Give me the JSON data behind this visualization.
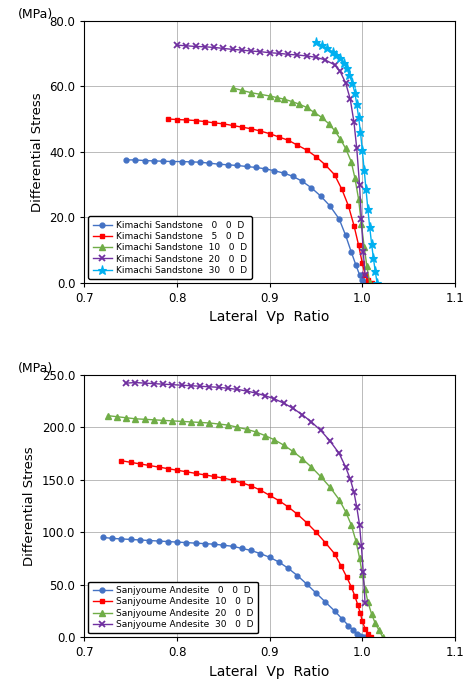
{
  "top_chart": {
    "ylabel": "Differential Stress",
    "ylabel2": "(MPa)",
    "xlabel": "Lateral  Vp  Ratio",
    "xlim": [
      0.7,
      1.1
    ],
    "ylim": [
      0.0,
      80.0
    ],
    "yticks": [
      0.0,
      20.0,
      40.0,
      60.0,
      80.0
    ],
    "xticks": [
      0.7,
      0.8,
      0.9,
      1.0,
      1.1
    ],
    "series": [
      {
        "label": "Kimachi Sandstone   0   0  D",
        "color": "#4472C4",
        "marker": "o",
        "markersize": 3.5,
        "vp_ratio": [
          0.745,
          0.755,
          0.765,
          0.775,
          0.785,
          0.795,
          0.805,
          0.815,
          0.825,
          0.835,
          0.845,
          0.855,
          0.865,
          0.875,
          0.885,
          0.895,
          0.905,
          0.915,
          0.925,
          0.935,
          0.945,
          0.955,
          0.965,
          0.975,
          0.982,
          0.988,
          0.993,
          0.997,
          1.0,
          1.002,
          1.005
        ],
        "stress": [
          37.5,
          37.5,
          37.3,
          37.2,
          37.1,
          37.0,
          37.0,
          36.9,
          36.8,
          36.5,
          36.2,
          36.0,
          35.8,
          35.5,
          35.2,
          34.8,
          34.2,
          33.5,
          32.5,
          31.0,
          29.0,
          26.5,
          23.5,
          19.5,
          14.5,
          9.5,
          5.5,
          2.5,
          0.8,
          0.2,
          0.0
        ]
      },
      {
        "label": "Kimachi Sandstone   5   0  D",
        "color": "#FF0000",
        "marker": "s",
        "markersize": 3.5,
        "vp_ratio": [
          0.79,
          0.8,
          0.81,
          0.82,
          0.83,
          0.84,
          0.85,
          0.86,
          0.87,
          0.88,
          0.89,
          0.9,
          0.91,
          0.92,
          0.93,
          0.94,
          0.95,
          0.96,
          0.97,
          0.978,
          0.985,
          0.991,
          0.996,
          1.0,
          1.003,
          1.006,
          1.01
        ],
        "stress": [
          50.0,
          49.8,
          49.7,
          49.5,
          49.2,
          48.8,
          48.5,
          48.0,
          47.5,
          47.0,
          46.3,
          45.5,
          44.5,
          43.5,
          42.0,
          40.5,
          38.5,
          36.0,
          33.0,
          28.5,
          23.5,
          17.5,
          11.5,
          6.0,
          2.5,
          0.8,
          0.0
        ]
      },
      {
        "label": "Kimachi Sandstone  10   0  D",
        "color": "#70AD47",
        "marker": "^",
        "markersize": 4,
        "vp_ratio": [
          0.86,
          0.87,
          0.88,
          0.89,
          0.9,
          0.908,
          0.916,
          0.924,
          0.932,
          0.94,
          0.948,
          0.956,
          0.964,
          0.97,
          0.976,
          0.982,
          0.988,
          0.992,
          0.996,
          0.999,
          1.002,
          1.005,
          1.008
        ],
        "stress": [
          59.5,
          58.7,
          58.0,
          57.5,
          57.0,
          56.5,
          56.0,
          55.3,
          54.5,
          53.5,
          52.0,
          50.5,
          48.5,
          46.5,
          44.0,
          41.0,
          37.0,
          32.0,
          25.5,
          18.0,
          11.0,
          5.0,
          0.0
        ]
      },
      {
        "label": "Kimachi Sandstone  20   0  D",
        "color": "#7030A0",
        "marker": "x",
        "markersize": 4.5,
        "vp_ratio": [
          0.8,
          0.81,
          0.82,
          0.83,
          0.84,
          0.85,
          0.86,
          0.87,
          0.88,
          0.89,
          0.9,
          0.91,
          0.92,
          0.93,
          0.94,
          0.95,
          0.96,
          0.97,
          0.976,
          0.982,
          0.987,
          0.991,
          0.994,
          0.997,
          0.999,
          1.001,
          1.003
        ],
        "stress": [
          72.5,
          72.3,
          72.1,
          72.0,
          71.8,
          71.5,
          71.2,
          71.0,
          70.7,
          70.5,
          70.2,
          70.0,
          69.7,
          69.5,
          69.2,
          68.8,
          68.0,
          66.5,
          64.5,
          61.0,
          56.0,
          49.0,
          41.0,
          30.0,
          19.5,
          9.5,
          2.5
        ]
      },
      {
        "label": "Kimachi Sandstone  30   0  D",
        "color": "#00B0F0",
        "marker": "*",
        "markersize": 5,
        "vp_ratio": [
          0.95,
          0.956,
          0.962,
          0.968,
          0.972,
          0.976,
          0.98,
          0.983,
          0.986,
          0.989,
          0.992,
          0.994,
          0.996,
          0.998,
          1.0,
          1.002,
          1.004,
          1.006,
          1.008,
          1.01,
          1.012,
          1.014,
          1.016
        ],
        "stress": [
          73.5,
          72.5,
          71.5,
          70.5,
          69.5,
          68.5,
          67.0,
          65.5,
          63.5,
          61.0,
          58.0,
          54.5,
          50.5,
          46.0,
          40.5,
          34.5,
          28.5,
          22.5,
          17.0,
          12.0,
          7.5,
          3.5,
          0.0
        ]
      }
    ]
  },
  "bottom_chart": {
    "ylabel": "Differential Stress",
    "ylabel2": "(MPa)",
    "xlabel": "Lateral  Vp  Ratio",
    "xlim": [
      0.7,
      1.1
    ],
    "ylim": [
      0.0,
      250.0
    ],
    "yticks": [
      0.0,
      50.0,
      100.0,
      150.0,
      200.0,
      250.0
    ],
    "xticks": [
      0.7,
      0.8,
      0.9,
      1.0,
      1.1
    ],
    "series": [
      {
        "label": "Sanjyoume Andesite   0   0  D",
        "color": "#4472C4",
        "marker": "o",
        "markersize": 3.5,
        "vp_ratio": [
          0.72,
          0.73,
          0.74,
          0.75,
          0.76,
          0.77,
          0.78,
          0.79,
          0.8,
          0.81,
          0.82,
          0.83,
          0.84,
          0.85,
          0.86,
          0.87,
          0.88,
          0.89,
          0.9,
          0.91,
          0.92,
          0.93,
          0.94,
          0.95,
          0.96,
          0.97,
          0.978,
          0.985,
          0.99,
          0.994,
          0.997,
          1.0,
          1.002,
          1.005
        ],
        "stress": [
          95.0,
          94.0,
          93.5,
          93.0,
          92.5,
          92.0,
          91.5,
          91.0,
          90.5,
          90.0,
          89.5,
          89.0,
          88.5,
          87.5,
          86.5,
          84.5,
          82.5,
          79.5,
          76.0,
          71.5,
          65.5,
          58.5,
          50.5,
          42.0,
          33.5,
          25.0,
          17.5,
          11.0,
          6.5,
          3.0,
          1.0,
          0.3,
          0.1,
          0.0
        ]
      },
      {
        "label": "Sanjyoume Andesite  10   0  D",
        "color": "#FF0000",
        "marker": "s",
        "markersize": 3.5,
        "vp_ratio": [
          0.74,
          0.75,
          0.76,
          0.77,
          0.78,
          0.79,
          0.8,
          0.81,
          0.82,
          0.83,
          0.84,
          0.85,
          0.86,
          0.87,
          0.88,
          0.89,
          0.9,
          0.91,
          0.92,
          0.93,
          0.94,
          0.95,
          0.96,
          0.97,
          0.977,
          0.983,
          0.988,
          0.992,
          0.995,
          0.998,
          1.0,
          1.003,
          1.006,
          1.009
        ],
        "stress": [
          168.0,
          166.5,
          165.0,
          163.5,
          162.0,
          160.5,
          159.0,
          157.5,
          156.0,
          154.5,
          153.0,
          151.5,
          149.5,
          147.0,
          144.0,
          140.0,
          135.0,
          130.0,
          124.0,
          117.0,
          109.0,
          100.0,
          90.0,
          79.5,
          68.0,
          57.5,
          48.0,
          39.0,
          31.0,
          22.5,
          15.0,
          8.0,
          2.5,
          0.0
        ]
      },
      {
        "label": "Sanjyoume Andesite  20   0  D",
        "color": "#70AD47",
        "marker": "^",
        "markersize": 4,
        "vp_ratio": [
          0.725,
          0.735,
          0.745,
          0.755,
          0.765,
          0.775,
          0.785,
          0.795,
          0.805,
          0.815,
          0.825,
          0.835,
          0.845,
          0.855,
          0.865,
          0.875,
          0.885,
          0.895,
          0.905,
          0.915,
          0.925,
          0.935,
          0.945,
          0.955,
          0.965,
          0.975,
          0.982,
          0.988,
          0.993,
          0.997,
          1.0,
          1.003,
          1.006,
          1.01,
          1.014,
          1.018,
          1.022
        ],
        "stress": [
          211.0,
          210.0,
          209.0,
          208.0,
          207.5,
          207.0,
          206.5,
          206.0,
          205.5,
          205.0,
          204.5,
          204.0,
          203.0,
          202.0,
          200.0,
          198.0,
          195.5,
          192.0,
          188.0,
          183.0,
          177.0,
          170.0,
          162.0,
          153.0,
          143.0,
          131.0,
          119.5,
          107.0,
          92.0,
          75.5,
          60.0,
          46.0,
          33.5,
          22.0,
          13.0,
          6.5,
          0.0
        ]
      },
      {
        "label": "Sanjyoume Andesite  30   0  D",
        "color": "#7030A0",
        "marker": "x",
        "markersize": 4.5,
        "vp_ratio": [
          0.745,
          0.755,
          0.765,
          0.775,
          0.785,
          0.795,
          0.805,
          0.815,
          0.825,
          0.835,
          0.845,
          0.855,
          0.865,
          0.875,
          0.885,
          0.895,
          0.905,
          0.915,
          0.925,
          0.935,
          0.945,
          0.955,
          0.965,
          0.975,
          0.982,
          0.987,
          0.991,
          0.994,
          0.997,
          0.999,
          1.001,
          1.003
        ],
        "stress": [
          242.0,
          242.5,
          242.0,
          241.5,
          241.0,
          240.5,
          240.0,
          239.5,
          239.0,
          238.5,
          238.0,
          237.0,
          236.0,
          234.5,
          232.5,
          230.0,
          227.0,
          223.0,
          218.0,
          212.0,
          205.0,
          197.0,
          187.0,
          175.0,
          162.0,
          150.5,
          138.0,
          124.0,
          107.0,
          87.0,
          62.0,
          32.0
        ]
      }
    ]
  }
}
